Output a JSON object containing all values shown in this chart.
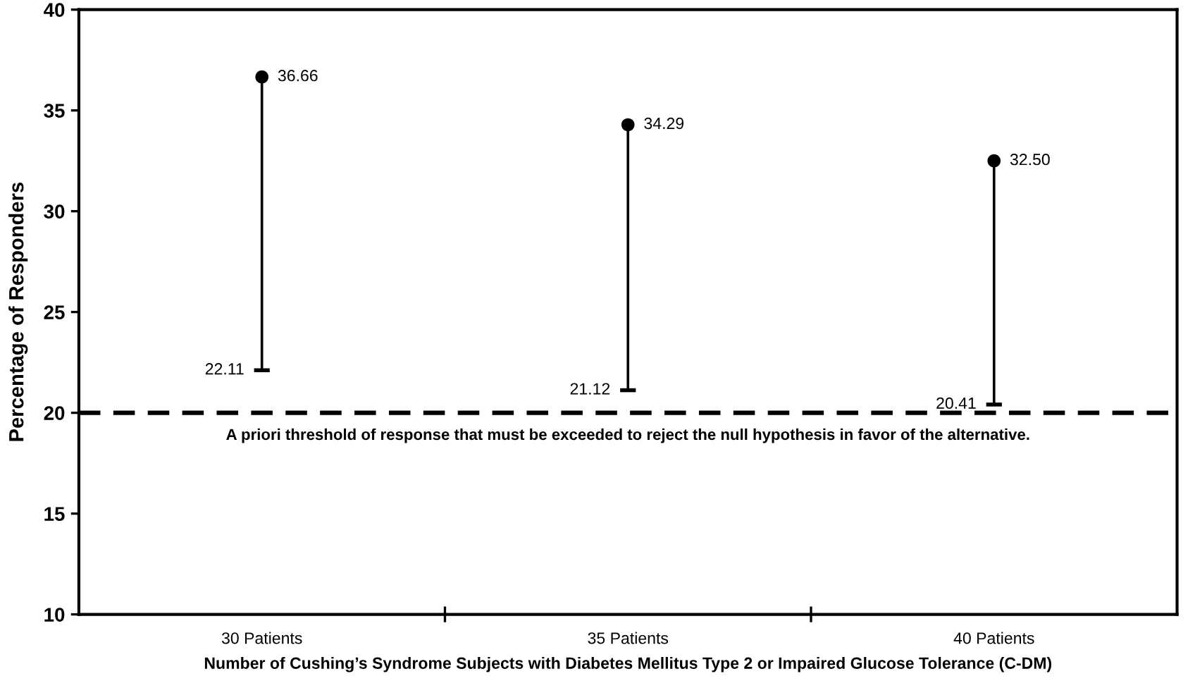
{
  "chart_data": {
    "type": "scatter",
    "xlabel": "Number of Cushing’s Syndrome Subjects with Diabetes Mellitus Type 2 or Impaired Glucose Tolerance (C-DM)",
    "ylabel": "Percentage of Responders",
    "categories": [
      "30 Patients",
      "35 Patients",
      "40 Patients"
    ],
    "series": [
      {
        "color": "#000000",
        "marker": "circle",
        "values": [
          36.66,
          34.29,
          32.5
        ],
        "errors": [
          [
            22.11,
            36.66
          ],
          [
            21.12,
            34.29
          ],
          [
            20.41,
            32.5
          ]
        ],
        "value_labels": [
          "36.66",
          "34.29",
          "32.50"
        ]
      }
    ],
    "annotations": [
      {
        "text": "22.11",
        "x": "30 Patients",
        "y": 22.11
      },
      {
        "text": "21.12",
        "x": "35 Patients",
        "y": 21.12
      },
      {
        "text": "20.41",
        "x": "40 Patients",
        "y": 20.41
      }
    ],
    "ref_lines": [
      {
        "axis": "y",
        "value": 20,
        "label": "A priori threshold of response that must be exceeded to reject the null hypothesis in favor of the alternative.",
        "color": "#000000",
        "line_style": "dashed"
      }
    ],
    "ylim": [
      10,
      40
    ],
    "yticks": [
      10,
      15,
      20,
      25,
      30,
      35,
      40
    ],
    "grid": false
  }
}
